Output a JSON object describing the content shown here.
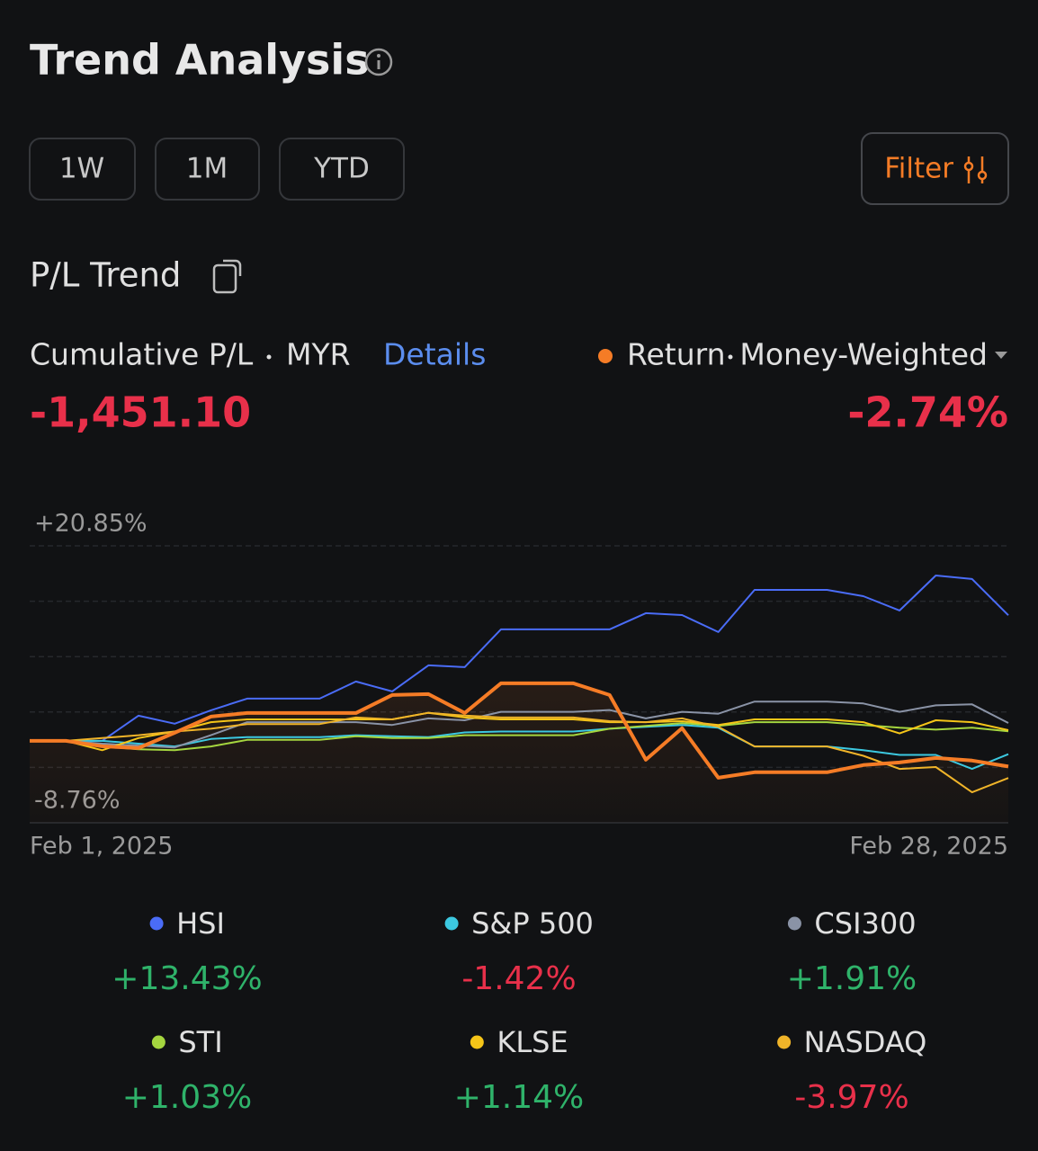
{
  "header": {
    "title": "Trend Analysis",
    "periods": [
      "1W",
      "1M",
      "YTD"
    ],
    "filter": "Filter"
  },
  "section_title": "P/L Trend",
  "summary": {
    "cumulative_label": "Cumulative P/L",
    "currency": "MYR",
    "details": "Details",
    "cumulative_value": {
      "value": -1451.1,
      "label": "-1,451.10"
    },
    "return_method": "Money-Weighted",
    "return_value": {
      "value": -2.74,
      "label": "-2.74%"
    }
  },
  "chart_data": {
    "type": "line",
    "categories": [
      "Feb 1, 2025",
      null,
      null,
      null,
      null,
      null,
      null,
      null,
      null,
      null,
      null,
      null,
      null,
      null,
      null,
      null,
      null,
      null,
      null,
      null,
      null,
      null,
      null,
      null,
      null,
      null,
      null,
      "Feb 28, 2025"
    ],
    "ylim": [
      -8.76,
      20.85
    ],
    "yticks": [
      {
        "value": 20.85,
        "label": "+20.85%"
      },
      {
        "value": -8.76,
        "label": "-8.76%"
      }
    ],
    "grid": true,
    "up_color": "#2fb36a",
    "down_color": "#e8304a",
    "series": [
      {
        "name": "Return",
        "color": "#f57c26",
        "main": true,
        "values": [
          0,
          0,
          -0.58,
          -0.77,
          0.86,
          2.59,
          2.98,
          2.98,
          2.98,
          2.98,
          4.9,
          5.0,
          2.98,
          6.15,
          6.15,
          6.15,
          4.9,
          -2.02,
          1.35,
          -3.94,
          -3.36,
          -3.36,
          -3.36,
          -2.59,
          -2.31,
          -1.83,
          -2.11,
          -2.74
        ]
      },
      {
        "name": "HSI",
        "color": "#4a6cf7",
        "change": 13.43,
        "change_label": "+13.43%",
        "values": [
          0,
          0,
          0,
          2.69,
          1.83,
          3.27,
          4.52,
          4.52,
          4.52,
          6.34,
          5.29,
          8.07,
          7.88,
          11.92,
          11.92,
          11.92,
          11.92,
          13.65,
          13.45,
          11.63,
          16.14,
          16.14,
          16.14,
          15.47,
          13.94,
          17.68,
          17.3,
          13.43
        ]
      },
      {
        "name": "S&P 500",
        "color": "#3cc8e0",
        "change": -1.42,
        "change_label": "-1.42%",
        "values": [
          0,
          0,
          0,
          -0.3,
          -0.6,
          0.2,
          0.4,
          0.4,
          0.4,
          0.6,
          0.5,
          0.4,
          0.9,
          1.0,
          1.0,
          1.0,
          1.3,
          1.5,
          1.7,
          1.4,
          -0.6,
          -0.6,
          -0.6,
          -1.0,
          -1.5,
          -1.5,
          -3.0,
          -1.42
        ]
      },
      {
        "name": "CSI300",
        "color": "#8a93a6",
        "change": 1.91,
        "change_label": "+1.91%",
        "values": [
          0,
          0,
          -0.3,
          -0.5,
          -0.7,
          0.6,
          2.0,
          2.0,
          2.0,
          2.0,
          1.7,
          2.4,
          2.2,
          3.1,
          3.1,
          3.1,
          3.3,
          2.4,
          3.1,
          2.9,
          4.2,
          4.2,
          4.2,
          4.0,
          3.1,
          3.8,
          3.9,
          1.91
        ]
      },
      {
        "name": "STI",
        "color": "#a5d63f",
        "change": 1.03,
        "change_label": "+1.03%",
        "values": [
          0,
          0,
          -0.6,
          -0.9,
          -1.0,
          -0.6,
          0.1,
          0.1,
          0.1,
          0.5,
          0.3,
          0.3,
          0.6,
          0.6,
          0.6,
          0.6,
          1.3,
          1.6,
          1.9,
          1.6,
          2.0,
          2.0,
          2.0,
          1.7,
          1.4,
          1.2,
          1.4,
          1.03
        ]
      },
      {
        "name": "KLSE",
        "color": "#f5c518",
        "change": 1.14,
        "change_label": "+1.14%",
        "values": [
          0,
          0,
          -1.0,
          0.3,
          1.0,
          2.0,
          2.3,
          2.3,
          2.3,
          2.3,
          2.3,
          3.0,
          2.5,
          2.3,
          2.3,
          2.3,
          2.0,
          2.0,
          2.1,
          1.7,
          2.3,
          2.3,
          2.3,
          2.0,
          0.8,
          2.2,
          2.0,
          1.14
        ]
      },
      {
        "name": "NASDAQ",
        "color": "#f0b429",
        "change": -3.97,
        "change_label": "-3.97%",
        "values": [
          0,
          0,
          0.3,
          0.6,
          1.0,
          1.3,
          1.8,
          1.8,
          1.8,
          2.5,
          2.3,
          3.0,
          2.7,
          2.5,
          2.5,
          2.5,
          2.1,
          2.0,
          2.4,
          1.5,
          -0.6,
          -0.6,
          -0.6,
          -1.6,
          -3.0,
          -2.8,
          -5.5,
          -3.97
        ]
      }
    ]
  }
}
